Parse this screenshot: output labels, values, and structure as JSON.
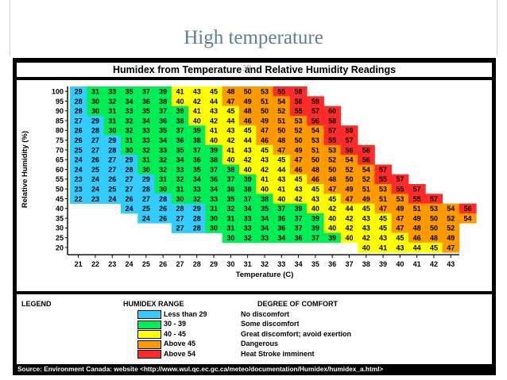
{
  "slide": {
    "title": "High temperature",
    "page_number": "38"
  },
  "chart_data": {
    "type": "heatmap",
    "title": "Humidex from Temperature and Relative Humidity Readings",
    "xlabel": "Temperature (C)",
    "ylabel": "Relative Humidity (%)",
    "x": [
      21,
      22,
      23,
      24,
      25,
      26,
      27,
      28,
      29,
      30,
      31,
      32,
      33,
      34,
      35,
      36,
      37,
      38,
      39,
      40,
      41,
      42,
      43
    ],
    "y": [
      100,
      95,
      90,
      85,
      80,
      75,
      70,
      65,
      60,
      55,
      50,
      45,
      40,
      35,
      30,
      25,
      20
    ],
    "rows": [
      {
        "rh": 100,
        "start": 21,
        "values": [
          29,
          31,
          33,
          35,
          37,
          39,
          41,
          43,
          45,
          48,
          50,
          53,
          55,
          58
        ]
      },
      {
        "rh": 95,
        "start": 21,
        "values": [
          28,
          30,
          32,
          34,
          36,
          38,
          40,
          42,
          44,
          47,
          49,
          51,
          54,
          56,
          59
        ]
      },
      {
        "rh": 90,
        "start": 21,
        "values": [
          28,
          30,
          31,
          33,
          35,
          37,
          39,
          41,
          43,
          45,
          48,
          50,
          52,
          55,
          57,
          60
        ]
      },
      {
        "rh": 85,
        "start": 21,
        "values": [
          27,
          29,
          31,
          32,
          34,
          36,
          38,
          40,
          42,
          44,
          46,
          49,
          51,
          53,
          56,
          58
        ]
      },
      {
        "rh": 80,
        "start": 21,
        "values": [
          26,
          28,
          30,
          32,
          33,
          35,
          37,
          39,
          41,
          43,
          45,
          47,
          50,
          52,
          54,
          57,
          59
        ]
      },
      {
        "rh": 75,
        "start": 21,
        "values": [
          26,
          27,
          29,
          31,
          33,
          34,
          36,
          38,
          40,
          42,
          44,
          46,
          48,
          50,
          53,
          55,
          57
        ]
      },
      {
        "rh": 70,
        "start": 21,
        "values": [
          25,
          27,
          28,
          30,
          32,
          33,
          35,
          37,
          39,
          41,
          43,
          45,
          47,
          49,
          51,
          53,
          56,
          58
        ]
      },
      {
        "rh": 65,
        "start": 21,
        "values": [
          24,
          26,
          27,
          29,
          31,
          32,
          34,
          36,
          38,
          40,
          42,
          43,
          45,
          47,
          50,
          52,
          54,
          56
        ]
      },
      {
        "rh": 60,
        "start": 21,
        "values": [
          24,
          25,
          27,
          28,
          30,
          32,
          33,
          35,
          37,
          38,
          40,
          42,
          44,
          46,
          48,
          50,
          52,
          54,
          57
        ]
      },
      {
        "rh": 55,
        "start": 21,
        "values": [
          23,
          24,
          26,
          27,
          29,
          31,
          32,
          34,
          36,
          37,
          39,
          41,
          43,
          45,
          46,
          48,
          50,
          52,
          55,
          57
        ]
      },
      {
        "rh": 50,
        "start": 21,
        "values": [
          23,
          24,
          25,
          27,
          28,
          30,
          31,
          33,
          34,
          36,
          38,
          40,
          41,
          43,
          45,
          47,
          49,
          51,
          53,
          55,
          57
        ]
      },
      {
        "rh": 45,
        "start": 21,
        "values": [
          22,
          23,
          24,
          26,
          27,
          28,
          30,
          32,
          33,
          35,
          37,
          38,
          40,
          42,
          43,
          45,
          47,
          49,
          51,
          53,
          55,
          57
        ]
      },
      {
        "rh": 40,
        "start": 24,
        "values": [
          24,
          25,
          26,
          28,
          29,
          31,
          32,
          34,
          35,
          37,
          39,
          40,
          42,
          44,
          45,
          47,
          49,
          51,
          53,
          54,
          56
        ]
      },
      {
        "rh": 35,
        "start": 25,
        "values": [
          24,
          26,
          27,
          28,
          30,
          31,
          33,
          34,
          36,
          37,
          39,
          40,
          42,
          43,
          45,
          47,
          49,
          50,
          52,
          54
        ]
      },
      {
        "rh": 30,
        "start": 27,
        "values": [
          27,
          28,
          30,
          31,
          33,
          34,
          36,
          37,
          39,
          40,
          42,
          43,
          45,
          47,
          48,
          50,
          52
        ]
      },
      {
        "rh": 25,
        "start": 30,
        "values": [
          30,
          32,
          33,
          34,
          36,
          37,
          39,
          40,
          42,
          43,
          45,
          46,
          48,
          49
        ]
      },
      {
        "rh": 20,
        "start": 38,
        "values": [
          40,
          41,
          43,
          44,
          45,
          47
        ]
      }
    ],
    "ranges": [
      {
        "label": "Less than 29",
        "comfort": "No discomfort",
        "color": "#33ccff"
      },
      {
        "label": "30 - 39",
        "comfort": "Some discomfort",
        "color": "#00ee55"
      },
      {
        "label": "40 - 45",
        "comfort": "Great discomfort; avoid exertion",
        "color": "#ffff00"
      },
      {
        "label": "Above 45",
        "comfort": "Dangerous",
        "color": "#ff9900"
      },
      {
        "label": "Above 54",
        "comfort": "Heat Stroke imminent",
        "color": "#ff2a2a"
      }
    ]
  },
  "legend": {
    "title": "LEGEND",
    "range_header": "HUMIDEX RANGE",
    "comfort_header": "DEGREE OF COMFORT"
  },
  "source": "Source: Environment Canada: website  <http://www.wul.qc.ec.gc.ca/meteo/documentation/Humidex/humidex_a.html>"
}
